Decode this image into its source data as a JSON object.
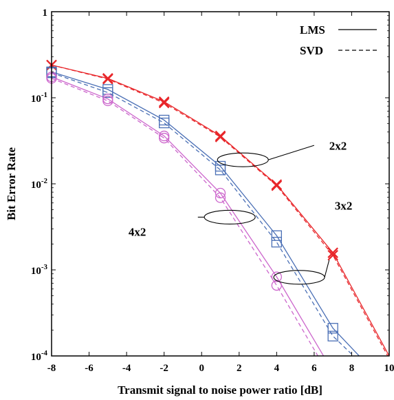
{
  "chart_data": {
    "type": "line",
    "xlabel": "Transmit signal to noise power ratio [dB]",
    "ylabel": "Bit Error Rate",
    "xlim": [
      -8,
      10
    ],
    "ylim": [
      0.0001,
      1
    ],
    "yscale": "log",
    "x_ticks": [
      -8,
      -6,
      -4,
      -2,
      0,
      2,
      4,
      6,
      8,
      10
    ],
    "x_tick_labels": [
      "-8",
      "-6",
      "-4",
      "-2",
      "0",
      "2",
      "4",
      "6",
      "8",
      "10"
    ],
    "y_ticks": [
      {
        "value": 0.0001,
        "base": "10",
        "exp": "-4"
      },
      {
        "value": 0.001,
        "base": "10",
        "exp": "-3"
      },
      {
        "value": 0.01,
        "base": "10",
        "exp": "-2"
      },
      {
        "value": 0.1,
        "base": "10",
        "exp": "-1"
      },
      {
        "value": 1,
        "base": "1",
        "exp": ""
      }
    ],
    "grid": false,
    "legend": {
      "position": "top-right",
      "entries": [
        {
          "label": "LMS",
          "dash": "solid"
        },
        {
          "label": "SVD",
          "dash": "dashed"
        }
      ]
    },
    "series": [
      {
        "group": "2x2",
        "method": "LMS",
        "color": "#e8262a",
        "marker": "x",
        "dash": "solid",
        "x": [
          -8,
          -5,
          -2,
          1,
          4,
          7,
          10
        ],
        "y": [
          0.24,
          0.168,
          0.09,
          0.036,
          0.0098,
          0.00158,
          0.0001
        ],
        "marker_x": [
          -8,
          -5,
          -2,
          1,
          4,
          7
        ]
      },
      {
        "group": "2x2",
        "method": "SVD",
        "color": "#e8262a",
        "marker": "x",
        "dash": "dashed",
        "x": [
          -8,
          -5,
          -2,
          1,
          4,
          7,
          10
        ],
        "y": [
          0.24,
          0.165,
          0.087,
          0.035,
          0.0095,
          0.00148,
          9.3e-05
        ],
        "marker_x": [
          -8,
          -5,
          -2,
          1,
          4,
          7
        ]
      },
      {
        "group": "3x2",
        "method": "LMS",
        "color": "#4a6fb5",
        "marker": "square",
        "dash": "solid",
        "x": [
          -8,
          -5,
          -2,
          1,
          4,
          7,
          8.4
        ],
        "y": [
          0.2,
          0.125,
          0.055,
          0.016,
          0.0025,
          0.00021,
          0.0001
        ],
        "marker_x": [
          -8,
          -5,
          -2,
          1,
          4,
          7
        ]
      },
      {
        "group": "3x2",
        "method": "SVD",
        "color": "#4a6fb5",
        "marker": "square",
        "dash": "dashed",
        "x": [
          -8,
          -5,
          -2,
          1,
          4,
          7,
          8.1
        ],
        "y": [
          0.195,
          0.115,
          0.051,
          0.0145,
          0.0021,
          0.00017,
          0.0001
        ],
        "marker_x": [
          -8,
          -5,
          -2,
          1,
          4,
          7
        ]
      },
      {
        "group": "4x2",
        "method": "LMS",
        "color": "#cc66cc",
        "marker": "circle",
        "dash": "solid",
        "x": [
          -8,
          -5,
          -2,
          1,
          4,
          6.5
        ],
        "y": [
          0.175,
          0.097,
          0.036,
          0.0078,
          0.00083,
          0.0001
        ],
        "marker_x": [
          -8,
          -5,
          -2,
          1,
          4
        ]
      },
      {
        "group": "4x2",
        "method": "SVD",
        "color": "#cc66cc",
        "marker": "circle",
        "dash": "dashed",
        "x": [
          -8,
          -5,
          -2,
          1,
          4,
          6.2
        ],
        "y": [
          0.168,
          0.092,
          0.034,
          0.0069,
          0.00066,
          0.0001
        ],
        "marker_x": [
          -8,
          -5,
          -2,
          1,
          4
        ]
      }
    ],
    "annotations": [
      {
        "text": "2x2",
        "ellipse_center": [
          2.2,
          0.019
        ],
        "label_anchor": [
          6.0,
          0.028
        ],
        "label_pos": [
          6.8,
          0.025
        ]
      },
      {
        "text": "3x2",
        "ellipse_center": [
          5.2,
          0.00082
        ],
        "label_anchor": [
          6.8,
          0.0013
        ],
        "label_pos": [
          7.1,
          0.005
        ]
      },
      {
        "text": "4x2",
        "ellipse_center": [
          1.5,
          0.0041
        ],
        "label_anchor": [
          -0.2,
          0.0041
        ],
        "label_pos": [
          -3.9,
          0.0025
        ]
      }
    ]
  }
}
